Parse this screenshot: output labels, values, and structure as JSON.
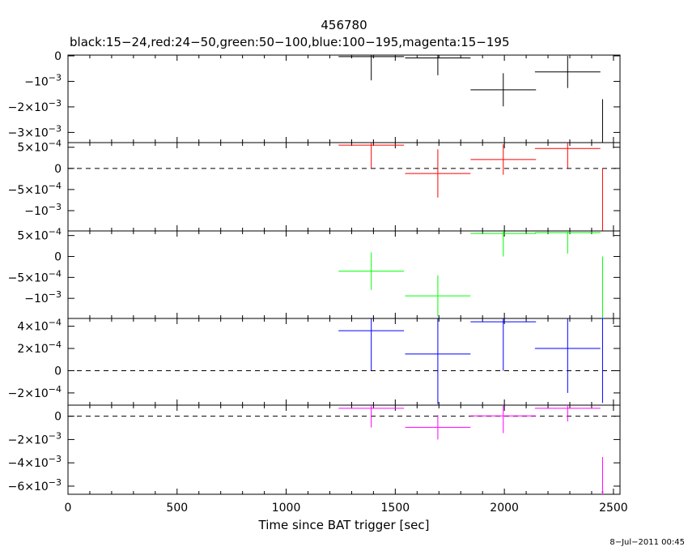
{
  "chart_data": {
    "type": "scatter",
    "title": "456780",
    "subtitle": "black:15−24,red:24−50,green:50−100,blue:100−195,magenta:15−195",
    "xlabel": "Time since BAT trigger [sec]",
    "xlim": [
      0,
      2530
    ],
    "x_ticks": [
      {
        "v": 0,
        "label": "0"
      },
      {
        "v": 500,
        "label": "500"
      },
      {
        "v": 1000,
        "label": "1000"
      },
      {
        "v": 1500,
        "label": "1500"
      },
      {
        "v": 2000,
        "label": "2000"
      },
      {
        "v": 2500,
        "label": "2500"
      }
    ],
    "timestamp": "8−Jul−2011 00:45",
    "panels": [
      {
        "name": "black:15−24",
        "color": "#000000",
        "ylim": [
          -0.0034,
          3e-05
        ],
        "zero_line": false,
        "y_ticks": [
          {
            "v": 0,
            "m": "0",
            "e": ""
          },
          {
            "v": -0.001,
            "m": "−10",
            "e": "−3"
          },
          {
            "v": -0.002,
            "m": "−2×10",
            "e": "−3"
          },
          {
            "v": -0.003,
            "m": "−3×10",
            "e": "−3"
          }
        ],
        "points": [
          {
            "x": 1390,
            "xerr": 150,
            "y": -3e-05,
            "yerr": 0.00093
          },
          {
            "x": 1695,
            "xerr": 150,
            "y": -8e-05,
            "yerr": 0.00068
          },
          {
            "x": 1995,
            "xerr": 150,
            "y": -0.00133,
            "yerr": 0.00065
          },
          {
            "x": 2290,
            "xerr": 150,
            "y": -0.00063,
            "yerr": 0.00063
          },
          {
            "x": 2450,
            "xerr": 5,
            "y": -0.0034,
            "yerr": 0.0017
          }
        ]
      },
      {
        "name": "red:24−50",
        "color": "#ff0000",
        "ylim": [
          -0.00148,
          0.00061
        ],
        "zero_line": true,
        "y_ticks": [
          {
            "v": 0.0005,
            "m": "5×10",
            "e": "−4"
          },
          {
            "v": 0,
            "m": "0",
            "e": ""
          },
          {
            "v": -0.0005,
            "m": "−5×10",
            "e": "−4"
          },
          {
            "v": -0.001,
            "m": "−10",
            "e": "−3"
          }
        ],
        "points": [
          {
            "x": 1390,
            "xerr": 150,
            "y": 0.00055,
            "yerr": 0.00055
          },
          {
            "x": 1695,
            "xerr": 150,
            "y": -0.00012,
            "yerr": 0.00057
          },
          {
            "x": 1995,
            "xerr": 150,
            "y": 0.00021,
            "yerr": 0.00036
          },
          {
            "x": 2290,
            "xerr": 150,
            "y": 0.00047,
            "yerr": 0.00047
          },
          {
            "x": 2450,
            "xerr": 5,
            "y": -0.0015,
            "yerr": 0.0015
          }
        ]
      },
      {
        "name": "green:50−100",
        "color": "#00ff00",
        "ylim": [
          -0.00148,
          0.00061
        ],
        "zero_line": false,
        "y_ticks": [
          {
            "v": 0.0005,
            "m": "5×10",
            "e": "−4"
          },
          {
            "v": 0,
            "m": "0",
            "e": ""
          },
          {
            "v": -0.0005,
            "m": "−5×10",
            "e": "−4"
          },
          {
            "v": -0.001,
            "m": "−10",
            "e": "−3"
          }
        ],
        "points": [
          {
            "x": 1390,
            "xerr": 150,
            "y": -0.00035,
            "yerr": 0.00045
          },
          {
            "x": 1695,
            "xerr": 150,
            "y": -0.00094,
            "yerr": 0.00049
          },
          {
            "x": 1995,
            "xerr": 150,
            "y": 0.00055,
            "yerr": 0.00055
          },
          {
            "x": 2290,
            "xerr": 150,
            "y": 0.00057,
            "yerr": 0.0005
          },
          {
            "x": 2450,
            "xerr": 5,
            "y": -0.0015,
            "yerr": 0.0015
          }
        ]
      },
      {
        "name": "blue:100−195",
        "color": "#0000ff",
        "ylim": [
          -0.00031,
          0.00047
        ],
        "zero_line": true,
        "y_ticks": [
          {
            "v": 0.0004,
            "m": "4×10",
            "e": "−4"
          },
          {
            "v": 0.0002,
            "m": "2×10",
            "e": "−4"
          },
          {
            "v": 0,
            "m": "0",
            "e": ""
          },
          {
            "v": -0.0002,
            "m": "−2×10",
            "e": "−4"
          }
        ],
        "points": [
          {
            "x": 1390,
            "xerr": 150,
            "y": 0.00036,
            "yerr": 0.00036
          },
          {
            "x": 1695,
            "xerr": 150,
            "y": 0.00015,
            "yerr": 0.00045
          },
          {
            "x": 1995,
            "xerr": 150,
            "y": 0.00044,
            "yerr": 0.00044
          },
          {
            "x": 2290,
            "xerr": 150,
            "y": 0.0002,
            "yerr": 0.0004
          },
          {
            "x": 2450,
            "xerr": 5,
            "y": 0.00047,
            "yerr": 0.00076
          }
        ]
      },
      {
        "name": "magenta:15−195",
        "color": "#ff00ff",
        "ylim": [
          -0.0067,
          0.00095
        ],
        "zero_line": true,
        "y_ticks": [
          {
            "v": 0,
            "m": "0",
            "e": ""
          },
          {
            "v": -0.002,
            "m": "−2×10",
            "e": "−3"
          },
          {
            "v": -0.004,
            "m": "−4×10",
            "e": "−3"
          },
          {
            "v": -0.006,
            "m": "−6×10",
            "e": "−3"
          }
        ],
        "points": [
          {
            "x": 1390,
            "xerr": 150,
            "y": 0.00068,
            "yerr": 0.00165
          },
          {
            "x": 1695,
            "xerr": 150,
            "y": -0.00095,
            "yerr": 0.00105
          },
          {
            "x": 1995,
            "xerr": 150,
            "y": 3e-05,
            "yerr": 0.00148
          },
          {
            "x": 2290,
            "xerr": 150,
            "y": 0.00068,
            "yerr": 0.00113
          },
          {
            "x": 2450,
            "xerr": 5,
            "y": -0.0065,
            "yerr": 0.003
          }
        ]
      }
    ]
  }
}
